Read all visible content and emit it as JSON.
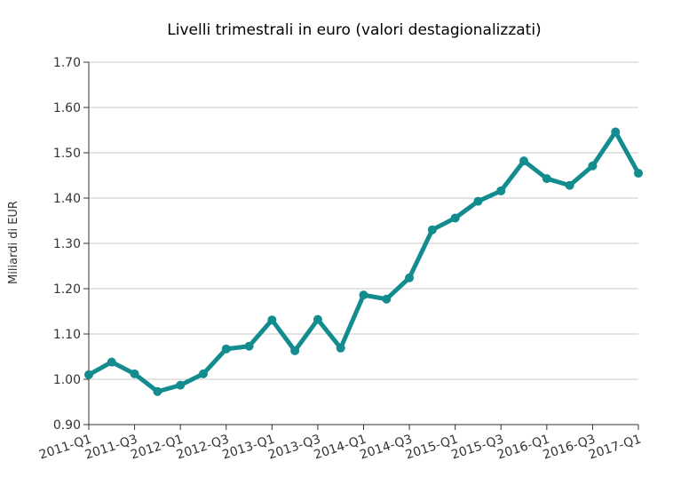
{
  "chart_data": {
    "type": "line",
    "title": "Livelli trimestrali in euro (valori destagionalizzati)",
    "xlabel": "",
    "ylabel": "Miliardi di EUR",
    "ylim": [
      0.9,
      1.7
    ],
    "yticks": [
      "0.90",
      "1.00",
      "1.10",
      "1.20",
      "1.30",
      "1.40",
      "1.50",
      "1.60",
      "1.70"
    ],
    "grid": true,
    "x": [
      "2011-Q1",
      "2011-Q2",
      "2011-Q3",
      "2011-Q4",
      "2012-Q1",
      "2012-Q2",
      "2012-Q3",
      "2012-Q4",
      "2013-Q1",
      "2013-Q2",
      "2013-Q3",
      "2013-Q4",
      "2014-Q1",
      "2014-Q2",
      "2014-Q3",
      "2014-Q4",
      "2015-Q1",
      "2015-Q2",
      "2015-Q3",
      "2015-Q4",
      "2016-Q1",
      "2016-Q2",
      "2016-Q3",
      "2016-Q4",
      "2017-Q1"
    ],
    "xtick_labels": [
      "2011-Q1",
      "2011-Q3",
      "2012-Q1",
      "2012-Q3",
      "2013-Q1",
      "2013-Q3",
      "2014-Q1",
      "2014-Q3",
      "2015-Q1",
      "2015-Q3",
      "2016-Q1",
      "2016-Q3",
      "2017-Q1"
    ],
    "series": [
      {
        "color": "#128c8e",
        "values": [
          1.01,
          1.038,
          1.012,
          0.973,
          0.987,
          1.012,
          1.067,
          1.073,
          1.131,
          1.063,
          1.132,
          1.069,
          1.186,
          1.177,
          1.224,
          1.33,
          1.356,
          1.393,
          1.416,
          1.482,
          1.443,
          1.428,
          1.471,
          1.546,
          1.455
        ]
      }
    ]
  }
}
